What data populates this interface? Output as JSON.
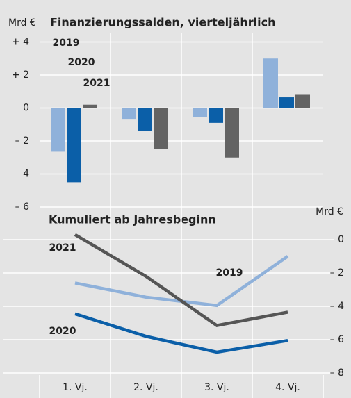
{
  "chart_data": [
    {
      "type": "bar",
      "title": "Finanzierungssalden, vierteljährlich",
      "y_unit": "Mrd €",
      "series": [
        {
          "name": "2019",
          "color": "#8fb1da",
          "values": [
            -2.65,
            -0.7,
            -0.55,
            3.0
          ]
        },
        {
          "name": "2020",
          "color": "#0b5fa8",
          "values": [
            -4.5,
            -1.4,
            -0.9,
            0.65
          ]
        },
        {
          "name": "2021",
          "color": "#636363",
          "values": [
            0.2,
            -2.5,
            -3.0,
            0.8
          ]
        }
      ],
      "ylim": [
        -6,
        4.5
      ],
      "yticks": [
        {
          "value": 4,
          "label": "+ 4"
        },
        {
          "value": 2,
          "label": "+ 2"
        },
        0,
        {
          "value": -2,
          "label": "– 2"
        },
        {
          "value": -4,
          "label": "– 4"
        },
        {
          "value": -6,
          "label": "– 6"
        }
      ],
      "grid": true
    },
    {
      "type": "line",
      "title": "Kumuliert ab Jahresbeginn",
      "y_unit": "Mrd €",
      "categories": [
        "1. Vj.",
        "2. Vj.",
        "3. Vj.",
        "4. Vj."
      ],
      "series": [
        {
          "name": "2019",
          "color": "#8fb1da",
          "values": [
            -2.6,
            -3.45,
            -3.95,
            -1.0
          ]
        },
        {
          "name": "2020",
          "color": "#0b5fa8",
          "values": [
            -4.45,
            -5.8,
            -6.75,
            -6.05
          ]
        },
        {
          "name": "2021",
          "color": "#555555",
          "values": [
            0.3,
            -2.2,
            -5.15,
            -4.35
          ]
        }
      ],
      "ylim": [
        -8.5,
        1.0
      ],
      "yticks": [
        0,
        {
          "value": -2,
          "label": "– 2"
        },
        {
          "value": -4,
          "label": "– 4"
        },
        {
          "value": -6,
          "label": "– 6"
        },
        {
          "value": -8,
          "label": "– 8"
        }
      ],
      "grid": true
    }
  ]
}
